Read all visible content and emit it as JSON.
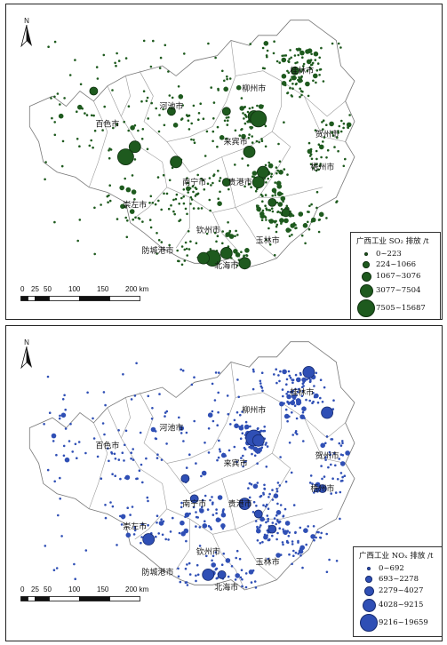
{
  "maps": [
    {
      "id": "so2",
      "north_label": "N",
      "point_color": "#1e5a1e",
      "point_stroke": "#0f300f",
      "legend": {
        "title": "广西工业 SO₂ 排放 /t",
        "classes": [
          "0~223",
          "224~1066",
          "1067~3076",
          "3077~7504",
          "7505~15687"
        ]
      },
      "scale_labels": [
        "0",
        "25",
        "50",
        "100",
        "150",
        "200 km"
      ],
      "cities": [
        "桂林市",
        "河池市",
        "柳州市",
        "贺州市",
        "百色市",
        "来宾市",
        "梧州市",
        "南宁市",
        "贵港市",
        "崇左市",
        "钦州市",
        "玉林市",
        "防城港市",
        "北海市"
      ],
      "large_points": [
        {
          "lon": 107.6,
          "lat": 24.5,
          "cls": 2
        },
        {
          "lon": 108.8,
          "lat": 24.5,
          "cls": 2
        },
        {
          "lon": 109.4,
          "lat": 24.4,
          "cls": 3
        },
        {
          "lon": 109.5,
          "lat": 24.35,
          "cls": 4
        },
        {
          "lon": 106.8,
          "lat": 23.8,
          "cls": 3
        },
        {
          "lon": 106.6,
          "lat": 23.6,
          "cls": 4
        },
        {
          "lon": 107.7,
          "lat": 23.5,
          "cls": 3
        },
        {
          "lon": 109.3,
          "lat": 23.7,
          "cls": 3
        },
        {
          "lon": 109.6,
          "lat": 23.3,
          "cls": 3
        },
        {
          "lon": 109.5,
          "lat": 23.1,
          "cls": 3
        },
        {
          "lon": 108.8,
          "lat": 23.1,
          "cls": 2
        },
        {
          "lon": 108.5,
          "lat": 21.6,
          "cls": 4
        },
        {
          "lon": 108.3,
          "lat": 21.6,
          "cls": 3
        },
        {
          "lon": 108.8,
          "lat": 21.7,
          "cls": 3
        },
        {
          "lon": 109.2,
          "lat": 21.5,
          "cls": 3
        },
        {
          "lon": 110.3,
          "lat": 25.3,
          "cls": 2
        },
        {
          "lon": 105.9,
          "lat": 24.9,
          "cls": 2
        },
        {
          "lon": 109.8,
          "lat": 22.7,
          "cls": 2
        },
        {
          "lon": 110.1,
          "lat": 22.5,
          "cls": 2
        }
      ]
    },
    {
      "id": "nox",
      "north_label": "N",
      "point_color": "#2f4fb5",
      "point_stroke": "#162a6e",
      "legend": {
        "title": "广西工业 NOₓ 排放 /t",
        "classes": [
          "0~692",
          "693~2278",
          "2279~4027",
          "4028~9215",
          "9216~19659"
        ]
      },
      "scale_labels": [
        "0",
        "25",
        "50",
        "100",
        "150",
        "200 km"
      ],
      "cities": [
        "桂林市",
        "河池市",
        "柳州市",
        "贺州市",
        "百色市",
        "来宾市",
        "梧州市",
        "南宁市",
        "贵港市",
        "崇左市",
        "钦州市",
        "玉林市",
        "防城港市",
        "北海市"
      ],
      "large_points": [
        {
          "lon": 110.6,
          "lat": 25.7,
          "cls": 3
        },
        {
          "lon": 111.0,
          "lat": 24.9,
          "cls": 3
        },
        {
          "lon": 109.4,
          "lat": 24.4,
          "cls": 4
        },
        {
          "lon": 109.5,
          "lat": 24.35,
          "cls": 3
        },
        {
          "lon": 107.9,
          "lat": 23.6,
          "cls": 2
        },
        {
          "lon": 108.1,
          "lat": 23.2,
          "cls": 2
        },
        {
          "lon": 109.2,
          "lat": 23.1,
          "cls": 3
        },
        {
          "lon": 109.5,
          "lat": 22.9,
          "cls": 2
        },
        {
          "lon": 110.9,
          "lat": 23.4,
          "cls": 2
        },
        {
          "lon": 107.1,
          "lat": 22.4,
          "cls": 3
        },
        {
          "lon": 108.4,
          "lat": 21.7,
          "cls": 3
        },
        {
          "lon": 108.7,
          "lat": 21.7,
          "cls": 2
        },
        {
          "lon": 109.8,
          "lat": 22.6,
          "cls": 2
        }
      ]
    }
  ]
}
